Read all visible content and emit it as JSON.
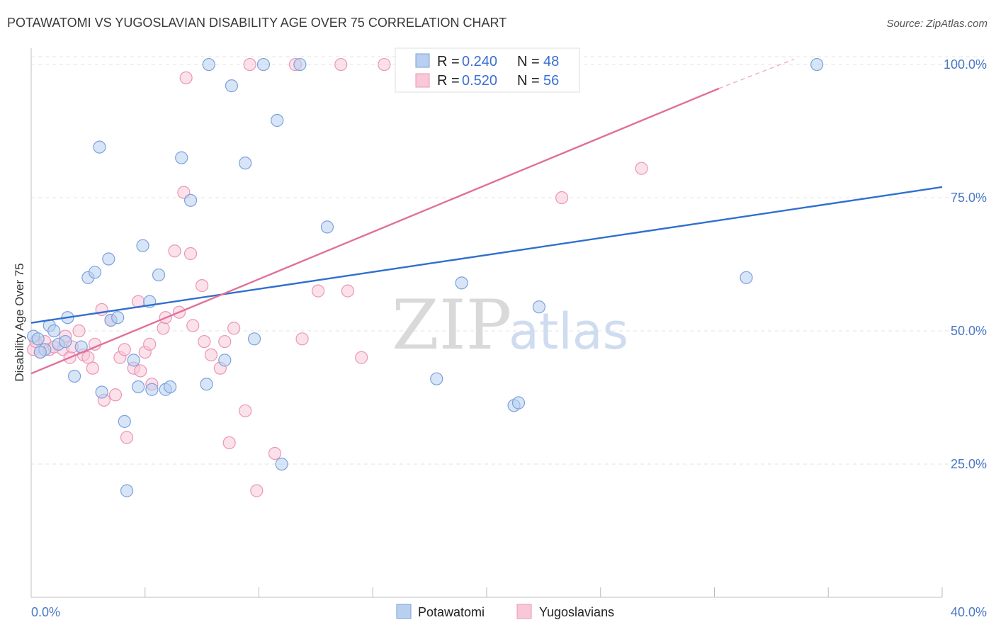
{
  "title": "POTAWATOMI VS YUGOSLAVIAN DISABILITY AGE OVER 75 CORRELATION CHART",
  "source": "Source: ZipAtlas.com",
  "watermark": {
    "zip": "ZIP",
    "atlas": "atlas"
  },
  "colors": {
    "blue_fill": "#b8cff0",
    "blue_stroke": "#7aa2dd",
    "blue_line": "#2f6fd0",
    "pink_fill": "#f8c8d8",
    "pink_stroke": "#eb96b4",
    "pink_line": "#e0709a",
    "grid": "#e3e3e3",
    "tick_text": "#4a78c8"
  },
  "legend": {
    "rows": [
      {
        "r_label": "R = ",
        "r_value": "0.240",
        "n_label": "N = ",
        "n_value": "48"
      },
      {
        "r_label": "R = ",
        "r_value": "0.520",
        "n_label": "N = ",
        "n_value": "56"
      }
    ]
  },
  "bottom_legend": [
    "Potawatomi",
    "Yugoslavians"
  ],
  "chart_data": {
    "type": "scatter",
    "title": "POTAWATOMI VS YUGOSLAVIAN DISABILITY AGE OVER 75 CORRELATION CHART",
    "xlabel": "",
    "ylabel": "Disability Age Over 75",
    "xlim": [
      0,
      40
    ],
    "ylim": [
      0,
      102
    ],
    "x_tick_labels": [
      "0.0%",
      "40.0%"
    ],
    "y_ticks": [
      25,
      50,
      75,
      100
    ],
    "y_tick_labels": [
      "25.0%",
      "50.0%",
      "75.0%",
      "100.0%"
    ],
    "grid": true,
    "series": [
      {
        "name": "Potawatomi",
        "color": "#7aa2dd",
        "r": 0.24,
        "n": 48,
        "trend": {
          "x0": 0,
          "y0": 51.5,
          "x1": 40,
          "y1": 77
        },
        "points": [
          [
            0.1,
            49
          ],
          [
            0.3,
            48.5
          ],
          [
            0.6,
            46.5
          ],
          [
            0.8,
            51
          ],
          [
            1.0,
            50
          ],
          [
            1.2,
            47.5
          ],
          [
            1.5,
            48
          ],
          [
            1.6,
            52.5
          ],
          [
            1.9,
            41.5
          ],
          [
            2.2,
            47
          ],
          [
            2.5,
            60
          ],
          [
            2.8,
            61
          ],
          [
            3.0,
            84.5
          ],
          [
            3.1,
            38.5
          ],
          [
            3.4,
            63.5
          ],
          [
            3.5,
            52
          ],
          [
            3.8,
            52.5
          ],
          [
            4.1,
            33
          ],
          [
            4.2,
            20
          ],
          [
            4.5,
            44.5
          ],
          [
            4.7,
            39.5
          ],
          [
            4.9,
            66
          ],
          [
            5.2,
            55.5
          ],
          [
            5.3,
            39
          ],
          [
            5.6,
            60.5
          ],
          [
            5.9,
            39
          ],
          [
            6.1,
            39.5
          ],
          [
            6.6,
            82.5
          ],
          [
            7.0,
            74.5
          ],
          [
            7.8,
            100
          ],
          [
            7.7,
            40
          ],
          [
            8.5,
            44.5
          ],
          [
            8.8,
            96
          ],
          [
            9.4,
            81.5
          ],
          [
            9.8,
            48.5
          ],
          [
            10.2,
            100
          ],
          [
            10.8,
            89.5
          ],
          [
            11.0,
            25
          ],
          [
            11.8,
            100
          ],
          [
            13.0,
            69.5
          ],
          [
            17.8,
            41
          ],
          [
            18.9,
            59
          ],
          [
            21.2,
            36
          ],
          [
            21.4,
            36.5
          ],
          [
            22.3,
            54.5
          ],
          [
            31.4,
            60
          ],
          [
            34.5,
            100
          ],
          [
            0.4,
            46
          ]
        ]
      },
      {
        "name": "Yugoslavians",
        "color": "#eb96b4",
        "r": 0.52,
        "n": 56,
        "trend": {
          "x0": 0,
          "y0": 42,
          "x1": 30.2,
          "y1": 95.5
        },
        "trend_dashed": {
          "x0": 30.2,
          "y0": 95.5,
          "x1": 33.5,
          "y1": 101
        },
        "points": [
          [
            0.1,
            46.5
          ],
          [
            0.2,
            48
          ],
          [
            0.4,
            46
          ],
          [
            0.6,
            48
          ],
          [
            0.8,
            46.5
          ],
          [
            1.0,
            47
          ],
          [
            1.4,
            46.5
          ],
          [
            1.5,
            49
          ],
          [
            1.7,
            45
          ],
          [
            1.8,
            47
          ],
          [
            2.1,
            50
          ],
          [
            2.3,
            45.5
          ],
          [
            2.5,
            45
          ],
          [
            2.7,
            43
          ],
          [
            2.8,
            47.5
          ],
          [
            3.1,
            54
          ],
          [
            3.2,
            37
          ],
          [
            3.5,
            52
          ],
          [
            3.7,
            38
          ],
          [
            3.9,
            45
          ],
          [
            4.1,
            46.5
          ],
          [
            4.2,
            30
          ],
          [
            4.5,
            43
          ],
          [
            4.7,
            55.5
          ],
          [
            4.8,
            42.5
          ],
          [
            5.0,
            46
          ],
          [
            5.2,
            47.5
          ],
          [
            5.3,
            40
          ],
          [
            5.8,
            50.5
          ],
          [
            5.9,
            52.5
          ],
          [
            6.3,
            65
          ],
          [
            6.5,
            53.5
          ],
          [
            6.7,
            76
          ],
          [
            6.8,
            97.5
          ],
          [
            7.0,
            64.5
          ],
          [
            7.1,
            51
          ],
          [
            7.5,
            58.5
          ],
          [
            7.6,
            48
          ],
          [
            7.9,
            45.5
          ],
          [
            8.3,
            43
          ],
          [
            8.5,
            48
          ],
          [
            8.7,
            29
          ],
          [
            8.9,
            50.5
          ],
          [
            9.4,
            35
          ],
          [
            9.6,
            100
          ],
          [
            9.9,
            20
          ],
          [
            10.7,
            27
          ],
          [
            11.6,
            100
          ],
          [
            11.9,
            48.5
          ],
          [
            12.6,
            57.5
          ],
          [
            13.6,
            100
          ],
          [
            13.9,
            57.5
          ],
          [
            14.5,
            45
          ],
          [
            15.5,
            100
          ],
          [
            23.3,
            75
          ],
          [
            26.8,
            80.5
          ]
        ]
      }
    ]
  }
}
